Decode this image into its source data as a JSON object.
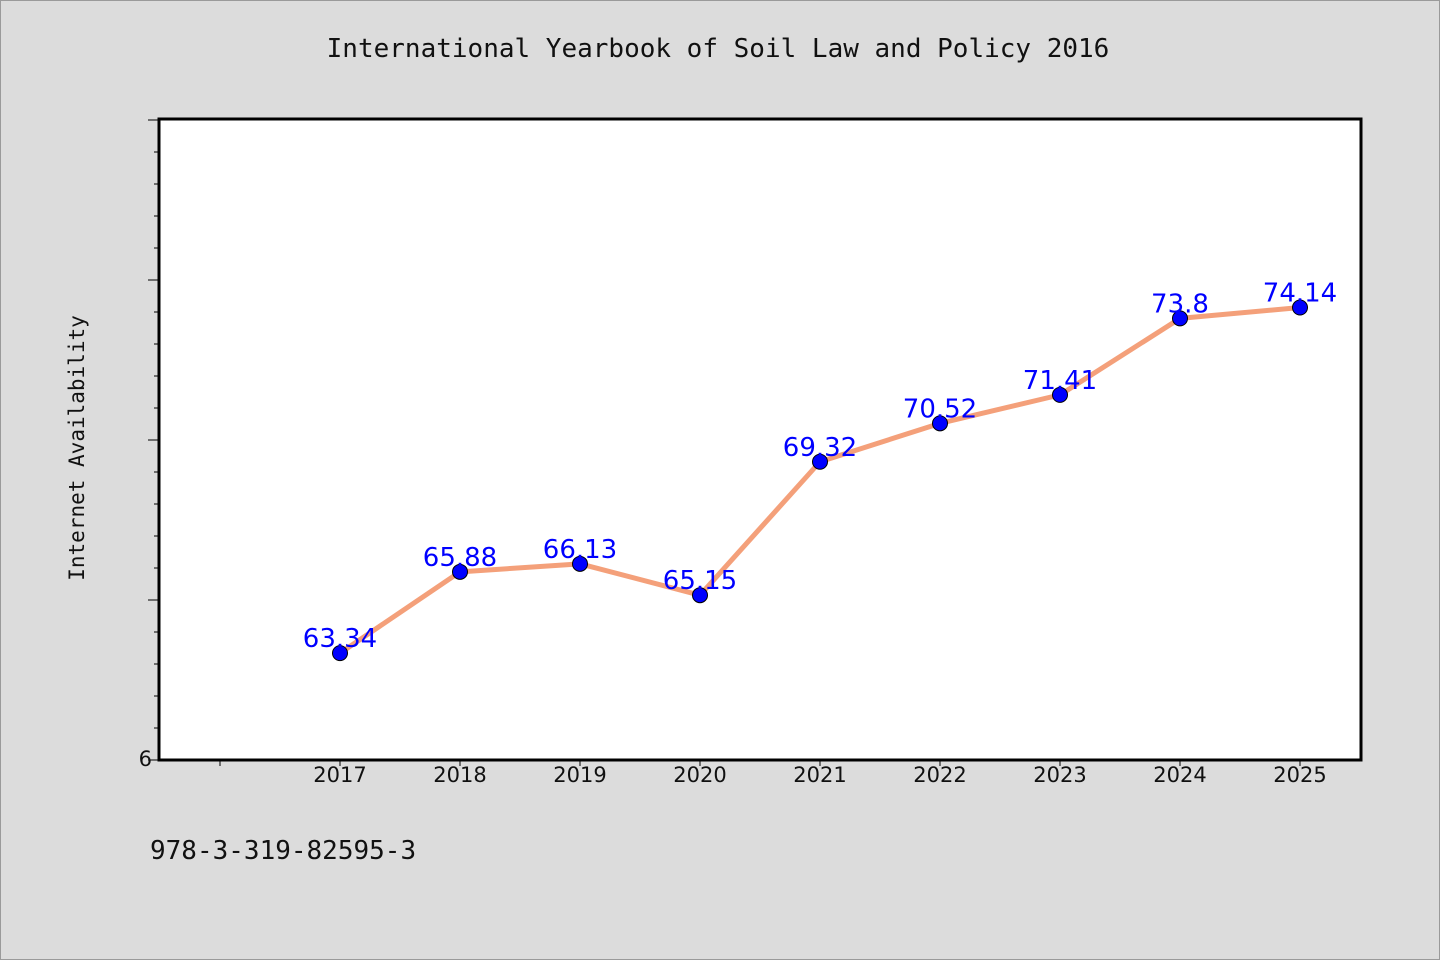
{
  "chart_data": {
    "type": "line",
    "title": "International Yearbook of Soil Law and Policy 2016",
    "xlabel": "",
    "ylabel": "Internet Availability",
    "categories": [
      "2017",
      "2018",
      "2019",
      "2020",
      "2021",
      "2022",
      "2023",
      "2024",
      "2025"
    ],
    "series": [
      {
        "values": [
          63.34,
          65.88,
          66.13,
          65.15,
          69.32,
          70.52,
          71.41,
          73.8,
          74.14
        ],
        "color": "#f4a07a",
        "marker_color": "#0000ff"
      }
    ],
    "data_labels": [
      "63.34",
      "65.88",
      "66.13",
      "65.15",
      "69.32",
      "70.52",
      "71.41",
      "73.8",
      "74.14"
    ],
    "ylim": [
      60,
      80
    ],
    "y_tick_labels": [
      "6"
    ],
    "grid": false,
    "legend": "none"
  },
  "footer": {
    "isbn": "978-3-319-82595-3"
  }
}
